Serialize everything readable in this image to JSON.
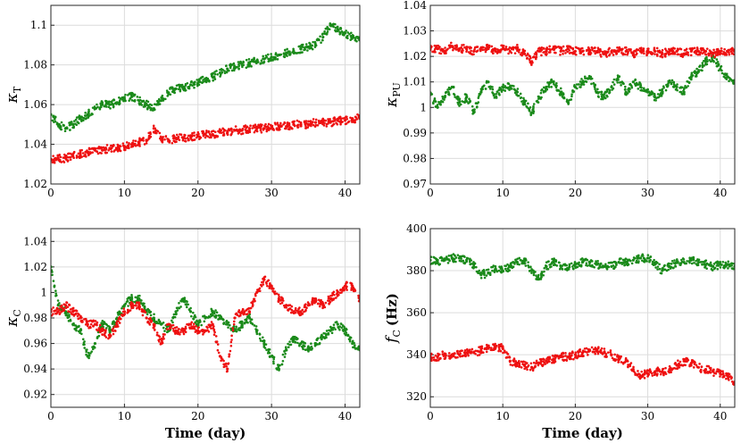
{
  "chart_data": [
    {
      "type": "scatter",
      "ylabel_main": "κ",
      "ylabel_sub": "T",
      "ylabel_unit": "",
      "xlabel": "",
      "xlim": [
        0,
        42
      ],
      "ylim": [
        1.02,
        1.11
      ],
      "xticks": [
        "0",
        "10",
        "20",
        "30",
        "40"
      ],
      "yticks": [
        "1.02",
        "1.04",
        "1.06",
        "1.08",
        "1.1"
      ],
      "grid": true,
      "series": [
        {
          "color": "#1a8a1a",
          "x": [
            0,
            1,
            2,
            3,
            4,
            5,
            6,
            7,
            8,
            9,
            10,
            11,
            12,
            13,
            14,
            15,
            16,
            17,
            18,
            19,
            20,
            21,
            22,
            23,
            24,
            25,
            26,
            27,
            28,
            29,
            30,
            31,
            32,
            33,
            34,
            35,
            36,
            37,
            38,
            39,
            40,
            41,
            42
          ],
          "y": [
            1.055,
            1.05,
            1.048,
            1.05,
            1.053,
            1.055,
            1.058,
            1.06,
            1.06,
            1.061,
            1.063,
            1.064,
            1.062,
            1.06,
            1.058,
            1.062,
            1.066,
            1.068,
            1.068,
            1.07,
            1.071,
            1.073,
            1.074,
            1.076,
            1.078,
            1.079,
            1.08,
            1.081,
            1.082,
            1.083,
            1.084,
            1.085,
            1.086,
            1.087,
            1.088,
            1.089,
            1.09,
            1.094,
            1.1,
            1.098,
            1.096,
            1.094,
            1.093
          ]
        },
        {
          "color": "#ee1111",
          "x": [
            0,
            1,
            2,
            3,
            4,
            5,
            6,
            7,
            8,
            9,
            10,
            11,
            12,
            13,
            14,
            15,
            16,
            17,
            18,
            19,
            20,
            21,
            22,
            23,
            24,
            25,
            26,
            27,
            28,
            29,
            30,
            31,
            32,
            33,
            34,
            35,
            36,
            37,
            38,
            39,
            40,
            41,
            42
          ],
          "y": [
            1.032,
            1.033,
            1.033,
            1.034,
            1.035,
            1.036,
            1.037,
            1.037,
            1.038,
            1.038,
            1.039,
            1.04,
            1.041,
            1.042,
            1.048,
            1.043,
            1.042,
            1.043,
            1.043,
            1.044,
            1.044,
            1.045,
            1.045,
            1.046,
            1.046,
            1.047,
            1.047,
            1.048,
            1.048,
            1.048,
            1.049,
            1.049,
            1.049,
            1.05,
            1.05,
            1.05,
            1.051,
            1.051,
            1.051,
            1.052,
            1.052,
            1.053,
            1.053
          ]
        }
      ]
    },
    {
      "type": "scatter",
      "ylabel_main": "κ",
      "ylabel_sub": "PU",
      "ylabel_unit": "",
      "xlabel": "",
      "xlim": [
        0,
        42
      ],
      "ylim": [
        0.97,
        1.04
      ],
      "xticks": [
        "0",
        "10",
        "20",
        "30",
        "40"
      ],
      "yticks": [
        "0.97",
        "0.98",
        "0.99",
        "1",
        "1.01",
        "1.02",
        "1.03",
        "1.04"
      ],
      "grid": true,
      "series": [
        {
          "color": "#1a8a1a",
          "x": [
            0,
            1,
            2,
            3,
            4,
            5,
            6,
            7,
            8,
            9,
            10,
            11,
            12,
            13,
            14,
            15,
            16,
            17,
            18,
            19,
            20,
            21,
            22,
            23,
            24,
            25,
            26,
            27,
            28,
            29,
            30,
            31,
            32,
            33,
            34,
            35,
            36,
            37,
            38,
            39,
            40,
            41,
            42
          ],
          "y": [
            1.005,
            1.0,
            1.004,
            1.008,
            1.002,
            1.004,
            0.998,
            1.006,
            1.01,
            1.004,
            1.008,
            1.008,
            1.006,
            1.002,
            0.998,
            1.004,
            1.008,
            1.01,
            1.006,
            1.002,
            1.008,
            1.01,
            1.012,
            1.006,
            1.004,
            1.008,
            1.012,
            1.006,
            1.01,
            1.008,
            1.006,
            1.004,
            1.006,
            1.01,
            1.008,
            1.006,
            1.012,
            1.014,
            1.018,
            1.02,
            1.015,
            1.012,
            1.01
          ]
        },
        {
          "color": "#ee1111",
          "x": [
            0,
            1,
            2,
            3,
            4,
            5,
            6,
            7,
            8,
            9,
            10,
            11,
            12,
            13,
            14,
            15,
            16,
            17,
            18,
            19,
            20,
            21,
            22,
            23,
            24,
            25,
            26,
            27,
            28,
            29,
            30,
            31,
            32,
            33,
            34,
            35,
            36,
            37,
            38,
            39,
            40,
            41,
            42
          ],
          "y": [
            1.023,
            1.023,
            1.022,
            1.024,
            1.023,
            1.023,
            1.022,
            1.023,
            1.023,
            1.022,
            1.023,
            1.022,
            1.023,
            1.021,
            1.018,
            1.022,
            1.022,
            1.023,
            1.022,
            1.023,
            1.022,
            1.022,
            1.022,
            1.022,
            1.021,
            1.022,
            1.022,
            1.022,
            1.021,
            1.022,
            1.022,
            1.022,
            1.021,
            1.022,
            1.022,
            1.021,
            1.022,
            1.022,
            1.022,
            1.021,
            1.022,
            1.022,
            1.022
          ]
        }
      ]
    },
    {
      "type": "scatter",
      "ylabel_main": "κ",
      "ylabel_sub": "C",
      "ylabel_unit": "",
      "xlabel": "Time (day)",
      "xlim": [
        0,
        42
      ],
      "ylim": [
        0.91,
        1.05
      ],
      "xticks": [
        "0",
        "10",
        "20",
        "30",
        "40"
      ],
      "yticks": [
        "0.92",
        "0.94",
        "0.96",
        "0.98",
        "1",
        "1.02",
        "1.04"
      ],
      "grid": true,
      "series": [
        {
          "color": "#1a8a1a",
          "x": [
            0,
            1,
            2,
            3,
            4,
            5,
            6,
            7,
            8,
            9,
            10,
            11,
            12,
            13,
            14,
            15,
            16,
            17,
            18,
            19,
            20,
            21,
            22,
            23,
            24,
            25,
            26,
            27,
            28,
            29,
            30,
            31,
            32,
            33,
            34,
            35,
            36,
            37,
            38,
            39,
            40,
            41,
            42
          ],
          "y": [
            1.02,
            0.99,
            0.985,
            0.975,
            0.97,
            0.95,
            0.96,
            0.975,
            0.97,
            0.98,
            0.99,
            0.995,
            0.995,
            0.985,
            0.98,
            0.975,
            0.97,
            0.985,
            0.995,
            0.985,
            0.975,
            0.98,
            0.985,
            0.98,
            0.975,
            0.97,
            0.975,
            0.98,
            0.97,
            0.96,
            0.95,
            0.94,
            0.955,
            0.965,
            0.96,
            0.955,
            0.96,
            0.965,
            0.97,
            0.975,
            0.97,
            0.96,
            0.955
          ]
        },
        {
          "color": "#ee1111",
          "x": [
            0,
            1,
            2,
            3,
            4,
            5,
            6,
            7,
            8,
            9,
            10,
            11,
            12,
            13,
            14,
            15,
            16,
            17,
            18,
            19,
            20,
            21,
            22,
            23,
            24,
            25,
            26,
            27,
            28,
            29,
            30,
            31,
            32,
            33,
            34,
            35,
            36,
            37,
            38,
            39,
            40,
            41,
            42
          ],
          "y": [
            0.985,
            0.985,
            0.99,
            0.985,
            0.98,
            0.975,
            0.975,
            0.97,
            0.965,
            0.975,
            0.985,
            0.99,
            0.99,
            0.98,
            0.975,
            0.96,
            0.975,
            0.97,
            0.97,
            0.975,
            0.97,
            0.97,
            0.975,
            0.95,
            0.94,
            0.98,
            0.985,
            0.985,
            1.0,
            1.01,
            1.005,
            0.995,
            0.99,
            0.985,
            0.985,
            0.99,
            0.995,
            0.99,
            0.995,
            1.0,
            1.005,
            1.005,
            0.995
          ]
        }
      ]
    },
    {
      "type": "scatter",
      "ylabel_main": "f",
      "ylabel_sub": "C",
      "ylabel_unit": "(Hz)",
      "xlabel": "Time (day)",
      "xlim": [
        0,
        42
      ],
      "ylim": [
        315,
        400
      ],
      "xticks": [
        "0",
        "10",
        "20",
        "30",
        "40"
      ],
      "yticks": [
        "320",
        "340",
        "360",
        "380",
        "400"
      ],
      "grid": true,
      "series": [
        {
          "color": "#1a8a1a",
          "x": [
            0,
            1,
            2,
            3,
            4,
            5,
            6,
            7,
            8,
            9,
            10,
            11,
            12,
            13,
            14,
            15,
            16,
            17,
            18,
            19,
            20,
            21,
            22,
            23,
            24,
            25,
            26,
            27,
            28,
            29,
            30,
            31,
            32,
            33,
            34,
            35,
            36,
            37,
            38,
            39,
            40,
            41,
            42
          ],
          "y": [
            385,
            384,
            385,
            386,
            386,
            385,
            383,
            378,
            379,
            381,
            380,
            382,
            384,
            385,
            380,
            376,
            382,
            384,
            382,
            381,
            383,
            384,
            384,
            383,
            382,
            382,
            384,
            384,
            385,
            386,
            386,
            383,
            380,
            382,
            384,
            384,
            385,
            384,
            383,
            382,
            383,
            383,
            382
          ]
        },
        {
          "color": "#ee1111",
          "x": [
            0,
            1,
            2,
            3,
            4,
            5,
            6,
            7,
            8,
            9,
            10,
            11,
            12,
            13,
            14,
            15,
            16,
            17,
            18,
            19,
            20,
            21,
            22,
            23,
            24,
            25,
            26,
            27,
            28,
            29,
            30,
            31,
            32,
            33,
            34,
            35,
            36,
            37,
            38,
            39,
            40,
            41,
            42
          ],
          "y": [
            339,
            339,
            340,
            340,
            340,
            341,
            341,
            342,
            343,
            344,
            343,
            337,
            336,
            335,
            334,
            336,
            337,
            338,
            339,
            339,
            340,
            341,
            342,
            342,
            341,
            340,
            338,
            337,
            333,
            330,
            331,
            332,
            332,
            333,
            335,
            337,
            336,
            334,
            333,
            332,
            331,
            330,
            327
          ]
        }
      ]
    }
  ]
}
